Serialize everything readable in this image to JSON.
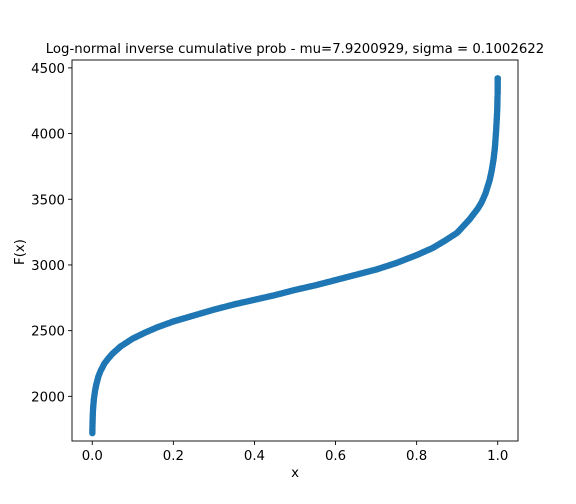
{
  "chart_data": {
    "type": "scatter",
    "title": "Log-normal inverse cumulative prob - mu=7.9200929, sigma = 0.1002622",
    "xlabel": "x",
    "ylabel": "F(x)",
    "xlim": [
      -0.05,
      1.05
    ],
    "ylim": [
      1660,
      4560
    ],
    "xticks": [
      0.0,
      0.2,
      0.4,
      0.6,
      0.8,
      1.0
    ],
    "xtick_labels": [
      "0.0",
      "0.2",
      "0.4",
      "0.6",
      "0.8",
      "1.0"
    ],
    "yticks": [
      2000,
      2500,
      3000,
      3500,
      4000,
      4500
    ],
    "ytick_labels": [
      "2000",
      "2500",
      "3000",
      "3500",
      "4000",
      "4500"
    ],
    "grid": false,
    "series": [
      {
        "color": "#1f77b4",
        "x": [
          0.0002,
          0.0005,
          0.001,
          0.002,
          0.004,
          0.007,
          0.01,
          0.015,
          0.02,
          0.03,
          0.04,
          0.05,
          0.07,
          0.1,
          0.13,
          0.16,
          0.2,
          0.25,
          0.3,
          0.35,
          0.4,
          0.45,
          0.5,
          0.55,
          0.6,
          0.65,
          0.7,
          0.75,
          0.8,
          0.84,
          0.87,
          0.9,
          0.93,
          0.95,
          0.96,
          0.97,
          0.98,
          0.985,
          0.99,
          0.993,
          0.996,
          0.998,
          0.999,
          0.9995,
          0.9998,
          0.9999,
          0.99995,
          0.99998,
          0.99999
        ],
        "y": [
          1720,
          1780,
          1840,
          1905,
          1980,
          2045,
          2090,
          2150,
          2190,
          2250,
          2290,
          2325,
          2380,
          2440,
          2485,
          2525,
          2570,
          2615,
          2660,
          2700,
          2735,
          2770,
          2810,
          2845,
          2885,
          2925,
          2965,
          3015,
          3075,
          3130,
          3185,
          3245,
          3345,
          3425,
          3475,
          3545,
          3645,
          3715,
          3810,
          3890,
          4020,
          4130,
          4200,
          4280,
          4300,
          4330,
          4420,
          4420,
          4420
        ]
      }
    ]
  }
}
